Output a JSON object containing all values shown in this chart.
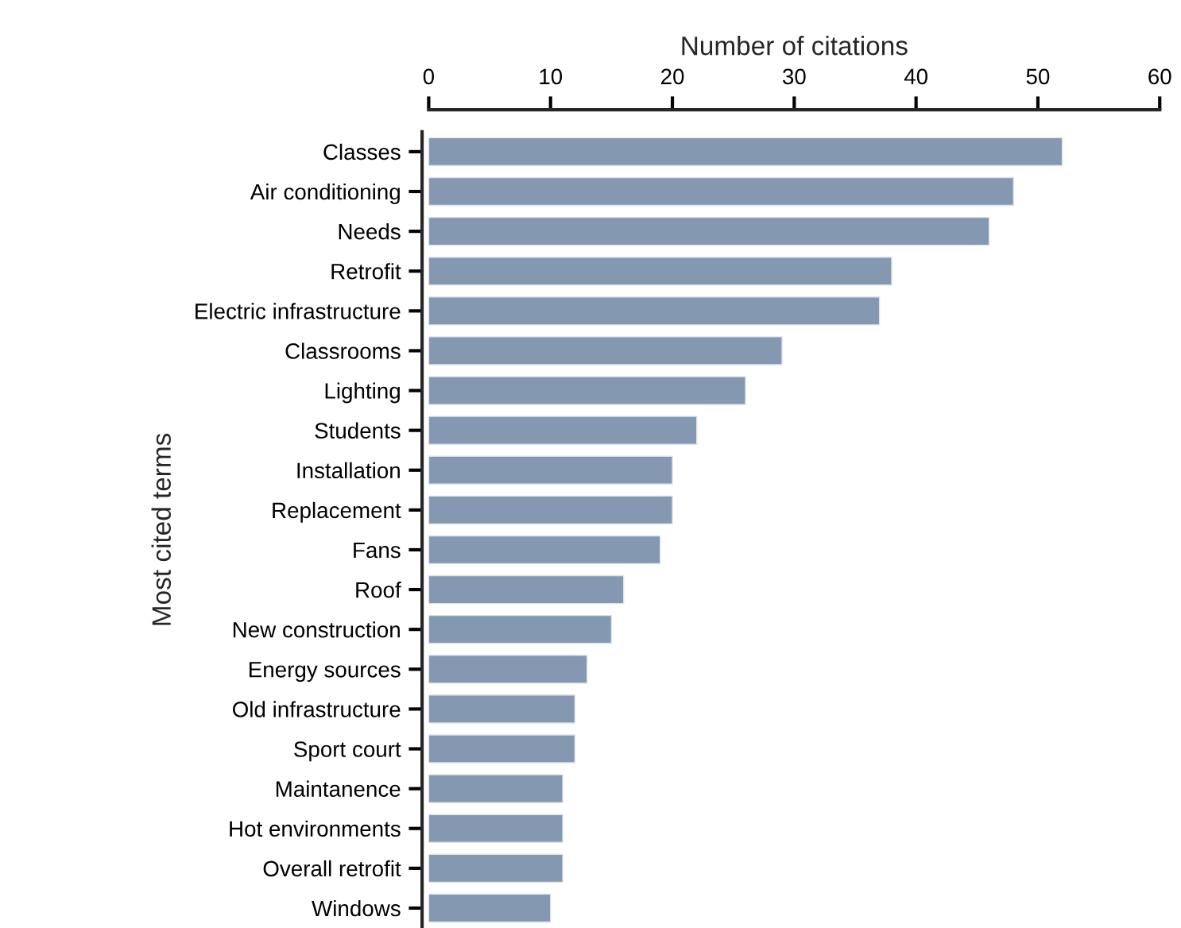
{
  "chart_data": {
    "type": "bar",
    "orientation": "horizontal",
    "xlabel": "Number of citations",
    "ylabel": "Most cited terms",
    "categories": [
      "Classes",
      "Air conditioning",
      "Needs",
      "Retrofit",
      "Electric infrastructure",
      "Classrooms",
      "Lighting",
      "Students",
      "Installation",
      "Replacement",
      "Fans",
      "Roof",
      "New construction",
      "Energy sources",
      "Old infrastructure",
      "Sport court",
      "Maintanence",
      "Hot environments",
      "Overall retrofit",
      "Windows"
    ],
    "values": [
      52,
      48,
      46,
      38,
      37,
      29,
      26,
      22,
      20,
      20,
      19,
      16,
      15,
      13,
      12,
      12,
      11,
      11,
      11,
      10
    ],
    "color": "#8598b2",
    "xlim": [
      0,
      60
    ],
    "xticks": [
      0,
      10,
      20,
      30,
      40,
      50,
      60
    ],
    "grid": false,
    "legend": false
  }
}
